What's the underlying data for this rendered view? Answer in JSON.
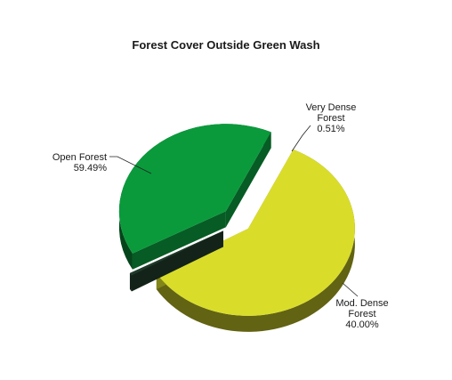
{
  "chart_data": {
    "type": "pie",
    "title": "Forest Cover Outside Green Wash",
    "slices": [
      {
        "label_lines": [
          "Open Forest",
          "59.49%"
        ],
        "value": 59.49,
        "color": "#d9dd2a"
      },
      {
        "label_lines": [
          "Very Dense",
          "Forest",
          "0.51%"
        ],
        "value": 0.51,
        "color": "#1f3a2a"
      },
      {
        "label_lines": [
          "Mod. Dense",
          "Forest",
          "40.00%"
        ],
        "value": 40.0,
        "color": "#0a9a3c"
      }
    ],
    "legend": "none",
    "style": "3d-exploded"
  }
}
